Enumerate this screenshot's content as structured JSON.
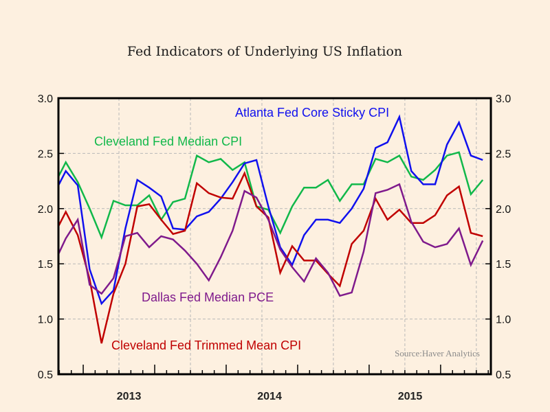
{
  "chart_data": {
    "type": "line",
    "title": "Fed Indicators of Underlying US Inflation",
    "xlabel": "",
    "ylabel": "",
    "source": "Source:Haver Analytics",
    "ylim": [
      0.5,
      3.0
    ],
    "xlim_months": [
      -0.62,
      35.68
    ],
    "y_ticks": [
      "3.0",
      "2.5",
      "2.0",
      "1.5",
      "1.0",
      "0.5"
    ],
    "y_tick_values": [
      3.0,
      2.5,
      2.0,
      1.5,
      1.0,
      0.5
    ],
    "x_year_labels": [
      {
        "label": "2013",
        "month_index": 5.3
      },
      {
        "label": "2014",
        "month_index": 17.1
      },
      {
        "label": "2015",
        "month_index": 28.9
      }
    ],
    "grid": true,
    "gridline_month_indices": [
      4.46,
      10.46,
      16.46,
      22.46,
      28.46,
      34.46
    ],
    "month_index_start": -1,
    "series": [
      {
        "name": "Cleveland Fed Median CPI",
        "color": "#11b84a",
        "values": [
          2.21,
          2.42,
          2.24,
          2.0,
          1.74,
          2.07,
          2.03,
          2.03,
          2.12,
          1.9,
          2.06,
          2.09,
          2.48,
          2.42,
          2.45,
          2.35,
          2.42,
          2.02,
          1.99,
          1.78,
          2.02,
          2.19,
          2.19,
          2.26,
          2.07,
          2.22,
          2.22,
          2.45,
          2.42,
          2.48,
          2.29,
          2.26,
          2.35,
          2.48,
          2.51,
          2.13,
          2.26
        ]
      },
      {
        "name": "Atlanta Fed Core Sticky CPI",
        "color": "#1010ee",
        "values": [
          2.13,
          2.34,
          2.21,
          1.45,
          1.14,
          1.26,
          1.82,
          2.26,
          2.19,
          2.11,
          1.82,
          1.81,
          1.93,
          1.97,
          2.09,
          2.24,
          2.41,
          2.44,
          2.02,
          1.65,
          1.49,
          1.76,
          1.9,
          1.9,
          1.87,
          2.0,
          2.18,
          2.55,
          2.6,
          2.83,
          2.34,
          2.22,
          2.22,
          2.58,
          2.78,
          2.48,
          2.44
        ]
      },
      {
        "name": "Cleveland Fed Trimmed Mean CPI",
        "color": "#c00000",
        "values": [
          1.76,
          1.97,
          1.76,
          1.36,
          0.78,
          1.23,
          1.5,
          2.02,
          2.04,
          1.9,
          1.77,
          1.8,
          2.23,
          2.14,
          2.1,
          2.09,
          2.32,
          2.02,
          1.92,
          1.42,
          1.66,
          1.53,
          1.53,
          1.41,
          1.3,
          1.68,
          1.8,
          2.09,
          1.9,
          1.99,
          1.87,
          1.87,
          1.94,
          2.12,
          2.2,
          1.78,
          1.75
        ]
      },
      {
        "name": "Dallas Fed Median PCE",
        "color": "#7f1a8c",
        "values": [
          1.5,
          1.73,
          1.9,
          1.31,
          1.23,
          1.37,
          1.75,
          1.78,
          1.65,
          1.75,
          1.72,
          1.62,
          1.5,
          1.35,
          1.56,
          1.8,
          2.16,
          2.1,
          1.9,
          1.63,
          1.47,
          1.34,
          1.55,
          1.42,
          1.21,
          1.24,
          1.61,
          2.14,
          2.17,
          2.22,
          1.88,
          1.7,
          1.65,
          1.68,
          1.82,
          1.49,
          1.71
        ]
      }
    ],
    "annotations": [
      {
        "text": "Atlanta Fed Core Sticky CPI",
        "series": "Atlanta Fed Core Sticky CPI",
        "color": "#1010ee"
      },
      {
        "text": "Cleveland Fed Median CPI",
        "series": "Cleveland Fed Median CPI",
        "color": "#11b84a"
      },
      {
        "text": "Dallas Fed Median PCE",
        "series": "Dallas Fed Median PCE",
        "color": "#7f1a8c"
      },
      {
        "text": "Cleveland Fed Trimmed Mean CPI",
        "series": "Cleveland Fed Trimmed Mean CPI",
        "color": "#c00000"
      }
    ]
  }
}
